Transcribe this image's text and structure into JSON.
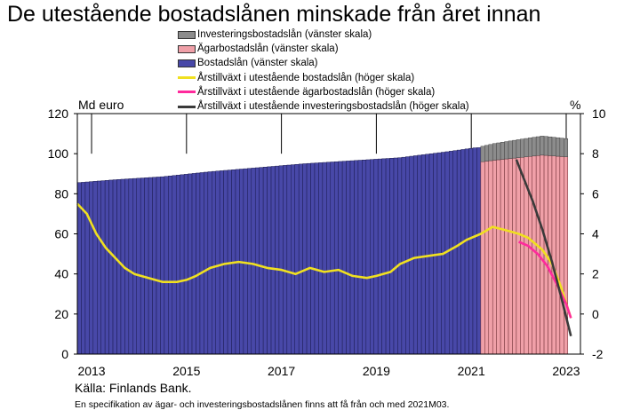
{
  "chart_data": {
    "type": "bar",
    "title": "De utestående bostadslånen minskade från året innan",
    "left_axis": {
      "label": "Md euro",
      "ticks": [
        0,
        20,
        40,
        60,
        80,
        100,
        120
      ],
      "range": [
        0,
        120
      ]
    },
    "right_axis": {
      "label": "%",
      "ticks": [
        -2,
        0,
        2,
        4,
        6,
        8,
        10
      ],
      "range": [
        -2,
        10
      ]
    },
    "x_ticks": [
      "2013",
      "2015",
      "2017",
      "2019",
      "2021",
      "2023"
    ],
    "x_tick_years": [
      2013,
      2015,
      2017,
      2019,
      2021,
      2023
    ],
    "x_range": [
      2012.7,
      2023.3
    ],
    "grid": "vertical at labelled years (upper part)",
    "legend_placement": "top",
    "colors": {
      "investering": "#8c8c8c",
      "agar": "#f0a0a8",
      "bostad": "#4848a8",
      "growth_total": "#f0e020",
      "growth_agar": "#ff2a9c",
      "growth_investering": "#3a3a3a"
    },
    "series": [
      {
        "name": "Investeringsbostadslån (vänster skala)",
        "key": "investering",
        "kind": "bar",
        "axis": "left",
        "points": [
          [
            2021.17,
            7.5
          ],
          [
            2021.5,
            8.3
          ],
          [
            2022.0,
            9.0
          ],
          [
            2022.5,
            9.5
          ],
          [
            2023.0,
            9.1
          ]
        ]
      },
      {
        "name": "Ägarbostadslån (vänster skala)",
        "key": "agar",
        "kind": "bar",
        "axis": "left",
        "points": [
          [
            2021.17,
            95.8
          ],
          [
            2021.5,
            96.8
          ],
          [
            2022.0,
            98.0
          ],
          [
            2022.5,
            99.3
          ],
          [
            2023.0,
            98.4
          ]
        ]
      },
      {
        "name": "Bostadslån (vänster skala)",
        "key": "bostad",
        "kind": "bar",
        "axis": "left",
        "points": [
          [
            2012.7,
            85.5
          ],
          [
            2013.5,
            87.0
          ],
          [
            2014.5,
            88.5
          ],
          [
            2015.5,
            91.0
          ],
          [
            2016.5,
            93.0
          ],
          [
            2017.5,
            95.0
          ],
          [
            2018.5,
            96.5
          ],
          [
            2019.5,
            98.0
          ],
          [
            2020.5,
            101.0
          ],
          [
            2021.1,
            103.0
          ]
        ]
      },
      {
        "name": "Årstillväxt i utestående bostadslån (höger skala)",
        "key": "growth_total",
        "kind": "line",
        "axis": "right",
        "points": [
          [
            2012.7,
            5.5
          ],
          [
            2012.9,
            5.0
          ],
          [
            2013.1,
            4.0
          ],
          [
            2013.3,
            3.3
          ],
          [
            2013.5,
            2.8
          ],
          [
            2013.7,
            2.3
          ],
          [
            2013.9,
            2.0
          ],
          [
            2014.2,
            1.8
          ],
          [
            2014.5,
            1.6
          ],
          [
            2014.8,
            1.6
          ],
          [
            2015.0,
            1.7
          ],
          [
            2015.2,
            1.9
          ],
          [
            2015.5,
            2.3
          ],
          [
            2015.8,
            2.5
          ],
          [
            2016.1,
            2.6
          ],
          [
            2016.4,
            2.5
          ],
          [
            2016.7,
            2.3
          ],
          [
            2017.0,
            2.2
          ],
          [
            2017.3,
            2.0
          ],
          [
            2017.6,
            2.3
          ],
          [
            2017.9,
            2.1
          ],
          [
            2018.2,
            2.2
          ],
          [
            2018.5,
            1.9
          ],
          [
            2018.8,
            1.8
          ],
          [
            2019.0,
            1.9
          ],
          [
            2019.3,
            2.1
          ],
          [
            2019.5,
            2.5
          ],
          [
            2019.8,
            2.8
          ],
          [
            2020.1,
            2.9
          ],
          [
            2020.4,
            3.0
          ],
          [
            2020.7,
            3.4
          ],
          [
            2020.9,
            3.7
          ],
          [
            2021.2,
            4.0
          ],
          [
            2021.45,
            4.35
          ],
          [
            2021.7,
            4.2
          ],
          [
            2022.0,
            4.0
          ],
          [
            2022.2,
            3.8
          ],
          [
            2022.5,
            3.2
          ],
          [
            2022.7,
            2.5
          ],
          [
            2022.9,
            1.3
          ],
          [
            2023.1,
            -0.2
          ]
        ]
      },
      {
        "name": "Årstillväxt i utestående ägarbostadslån (höger skala)",
        "key": "growth_agar",
        "kind": "line",
        "axis": "right",
        "points": [
          [
            2022.0,
            3.6
          ],
          [
            2022.2,
            3.4
          ],
          [
            2022.4,
            3.0
          ],
          [
            2022.6,
            2.4
          ],
          [
            2022.8,
            1.5
          ],
          [
            2023.0,
            0.5
          ],
          [
            2023.1,
            -0.2
          ]
        ]
      },
      {
        "name": "Årstillväxt i utestående investeringsbostadslån (höger skala)",
        "key": "growth_investering",
        "kind": "line",
        "axis": "right",
        "points": [
          [
            2021.95,
            7.7
          ],
          [
            2022.1,
            6.8
          ],
          [
            2022.3,
            5.6
          ],
          [
            2022.5,
            4.2
          ],
          [
            2022.7,
            2.6
          ],
          [
            2022.9,
            0.8
          ],
          [
            2023.1,
            -1.1
          ]
        ]
      }
    ],
    "source": "Källa: Finlands Bank.",
    "footnote": "En specifikation av ägar- och investeringsbostadslånen finns att få från och med 2021M03."
  }
}
